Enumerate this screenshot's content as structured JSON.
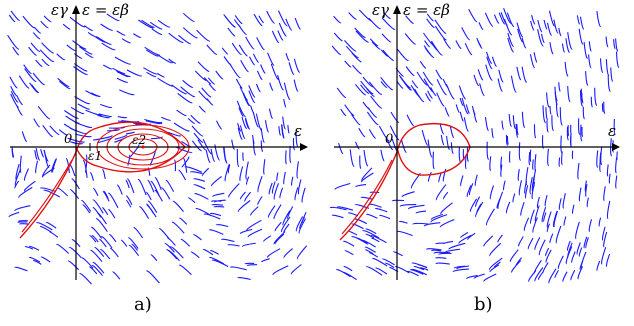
{
  "panels": [
    {
      "id": "a",
      "caption": "a)",
      "y_axis_label": "εγ",
      "diagonal_label": "ε = εβ",
      "x_axis_label": "ε",
      "origin_label": "0",
      "point_labels": [
        "ε1",
        "ε2"
      ],
      "has_center": true
    },
    {
      "id": "b",
      "caption": "b)",
      "y_axis_label": "εγ",
      "diagonal_label": "ε = εβ",
      "x_axis_label": "ε",
      "origin_label": "0",
      "point_labels": [],
      "has_center": false
    }
  ],
  "colors": {
    "field": "#1a1aff",
    "trajectory": "#e01010",
    "axes": "#000000"
  }
}
